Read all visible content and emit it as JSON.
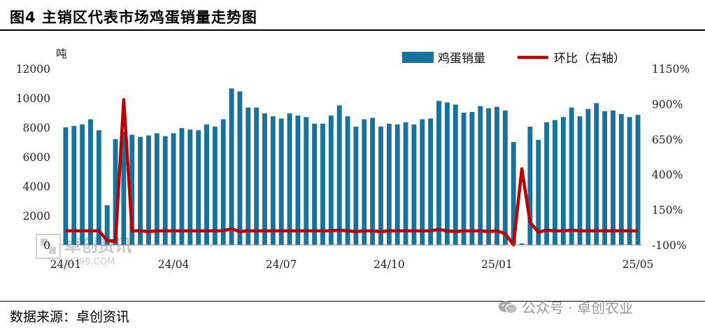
{
  "header": {
    "title": "图4 主销区代表市场鸡蛋销量走势图"
  },
  "footer": {
    "source": "数据来源：卓创资讯",
    "wechat": "公众号 · 卓创农业"
  },
  "watermark": {
    "text_cn": "卓创资讯",
    "text_en": "SCI99.COM"
  },
  "colors": {
    "bar": "#17729c",
    "line": "#c00000",
    "watermark": "#c8c8c8"
  },
  "chart_data": {
    "type": "bar+line",
    "y_unit": "吨",
    "ylim_left": [
      0,
      12000
    ],
    "yticks_left": [
      "0",
      "2000",
      "4000",
      "6000",
      "8000",
      "10000",
      "12000"
    ],
    "ylim_right": [
      -100,
      1150
    ],
    "yticks_right": [
      "-100%",
      "150%",
      "400%",
      "650%",
      "900%",
      "1150%"
    ],
    "xtick_labels": [
      "24/01",
      "24/04",
      "24/07",
      "24/10",
      "25/01",
      "25/05"
    ],
    "xtick_indices": [
      0,
      13,
      26,
      39,
      52,
      69
    ],
    "legend": {
      "bar": "鸡蛋销量",
      "line": "环比（右轴）"
    },
    "series": [
      {
        "name": "鸡蛋销量",
        "type": "bar",
        "values": [
          8000,
          8100,
          8200,
          8550,
          7800,
          2700,
          7200,
          7700,
          7500,
          7350,
          7450,
          7600,
          7400,
          7600,
          7950,
          7850,
          7800,
          8200,
          8050,
          8550,
          10650,
          10450,
          9350,
          9350,
          8950,
          8750,
          8600,
          8950,
          8800,
          8700,
          8250,
          8250,
          8800,
          9500,
          8750,
          8050,
          8550,
          8650,
          8050,
          8250,
          8200,
          8350,
          8200,
          8550,
          8600,
          9800,
          9700,
          9550,
          9000,
          9050,
          9450,
          9300,
          9400,
          9150,
          7000,
          100,
          8050,
          7150,
          8350,
          8500,
          8700,
          9350,
          8750,
          9250,
          9650,
          9100,
          9150,
          8900,
          8700,
          8850
        ]
      },
      {
        "name": "环比（右轴）",
        "type": "line",
        "values": [
          0,
          0,
          0,
          0,
          0,
          -68,
          -75,
          930,
          0,
          0,
          -5,
          0,
          0,
          0,
          0,
          0,
          0,
          0,
          0,
          0,
          15,
          -5,
          0,
          0,
          0,
          0,
          0,
          0,
          0,
          0,
          0,
          0,
          0,
          5,
          0,
          -5,
          0,
          0,
          -5,
          0,
          0,
          0,
          0,
          0,
          0,
          10,
          0,
          -5,
          0,
          0,
          0,
          -5,
          0,
          -20,
          -100,
          440,
          60,
          -10,
          5,
          0,
          0,
          5,
          0,
          0,
          0,
          0,
          0,
          0,
          0,
          0
        ]
      }
    ]
  }
}
